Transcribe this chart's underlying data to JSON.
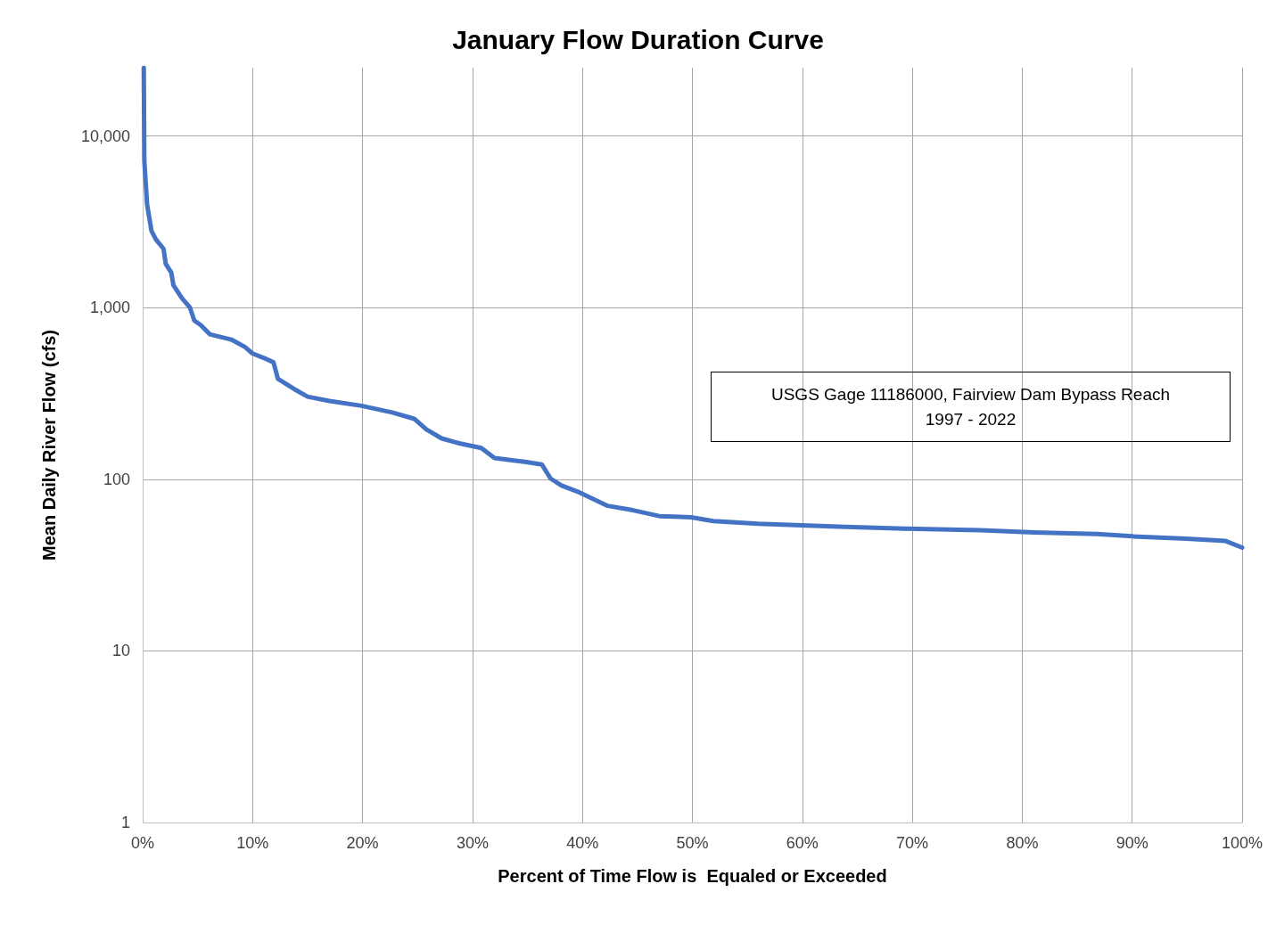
{
  "chart_data": {
    "type": "line",
    "title": "January Flow Duration Curve",
    "xlabel": "Percent of Time Flow is  Equaled or Exceeded",
    "ylabel": "Mean Daily River Flow (cfs)",
    "annotations": [
      "USGS Gage 11186000, Fairview Dam Bypass Reach\n1997 - 2022"
    ],
    "series": [
      {
        "color": "#4472c4",
        "x": [
          0.1,
          0.15,
          0.4,
          0.8,
          1.2,
          1.9,
          2.1,
          2.6,
          2.8,
          3.6,
          4.3,
          4.7,
          5.3,
          6.1,
          8.1,
          9.3,
          10,
          11,
          11.9,
          12.3,
          13.8,
          15,
          17,
          19.9,
          22.7,
          24.7,
          25.8,
          27.2,
          28.8,
          30.8,
          32,
          34.9,
          36.3,
          37.1,
          38.1,
          39.7,
          42.3,
          44.6,
          47,
          49.9,
          51.9,
          56,
          63.3,
          69.3,
          76.2,
          81.1,
          86.8,
          90,
          94.9,
          98.5,
          100
        ],
        "values": [
          25000,
          7200,
          4000,
          2800,
          2500,
          2200,
          1800,
          1600,
          1350,
          1130,
          1000,
          840,
          790,
          700,
          650,
          590,
          540,
          510,
          480,
          385,
          335,
          303,
          286,
          268,
          245,
          225,
          195,
          173,
          162,
          152,
          133,
          126,
          122,
          101,
          92,
          84,
          70,
          66,
          61,
          60,
          57,
          55,
          53,
          51.5,
          50.5,
          49,
          48,
          46.5,
          45,
          43.7,
          40
        ]
      }
    ],
    "xlim": [
      0,
      100
    ],
    "xticks": [
      {
        "value": 0,
        "label": "0%"
      },
      {
        "value": 10,
        "label": "10%"
      },
      {
        "value": 20,
        "label": "20%"
      },
      {
        "value": 30,
        "label": "30%"
      },
      {
        "value": 40,
        "label": "40%"
      },
      {
        "value": 50,
        "label": "50%"
      },
      {
        "value": 60,
        "label": "60%"
      },
      {
        "value": 70,
        "label": "70%"
      },
      {
        "value": 80,
        "label": "80%"
      },
      {
        "value": 90,
        "label": "90%"
      },
      {
        "value": 100,
        "label": "100%"
      }
    ],
    "ylim": [
      1,
      25000
    ],
    "yticks": [
      1,
      10,
      100,
      {
        "value": 1000,
        "label": "1,000"
      },
      {
        "value": 10000,
        "label": "10,000"
      }
    ],
    "log": true,
    "grid": true,
    "marker": "none",
    "line_style": "solid"
  }
}
